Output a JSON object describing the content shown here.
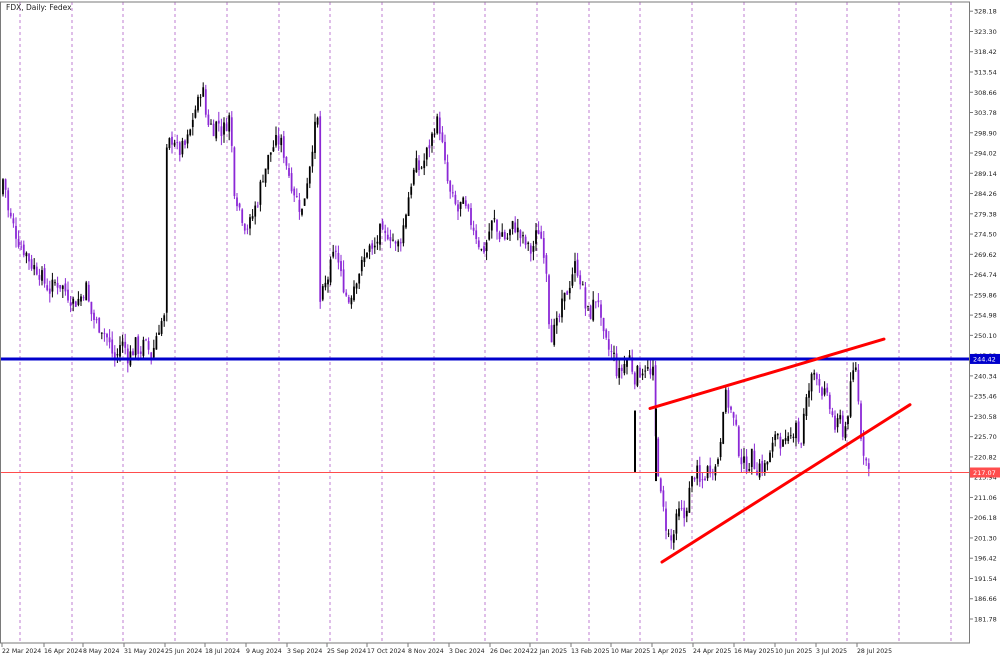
{
  "header": {
    "label": "FDX, Daily: Fedex"
  },
  "colors": {
    "background": "#ffffff",
    "frame": "#7a7a7a",
    "grid": "#b05ec8",
    "candle_bull": "#000000",
    "candle_bear": "#8b28d6",
    "support_line": "#0000cc",
    "current_line": "#ff4d4d",
    "trend_line": "#ff0000",
    "label_bg": "#1f1f1f",
    "label_text": "#ffffff"
  },
  "chart_data": {
    "type": "candlestick",
    "title": "FDX, Daily: Fedex",
    "ylim": [
      176.0,
      330.4
    ],
    "y_ticks": [
      "328.18",
      "323.30",
      "318.42",
      "313.54",
      "308.66",
      "303.78",
      "298.90",
      "294.02",
      "289.14",
      "284.26",
      "279.38",
      "274.50",
      "269.62",
      "264.74",
      "259.86",
      "254.98",
      "250.10",
      "245.22",
      "240.34",
      "235.46",
      "230.58",
      "225.70",
      "220.82",
      "215.94",
      "211.06",
      "206.18",
      "201.30",
      "196.42",
      "191.54",
      "186.66",
      "181.78"
    ],
    "x_labels": [
      "22 Mar 2024",
      "16 Apr 2024",
      "8 May 2024",
      "31 May 2024",
      "25 Jun 2024",
      "18 Jul 2024",
      "9 Aug 2024",
      "3 Sep 2024",
      "25 Sep 2024",
      "17 Oct 2024",
      "8 Nov 2024",
      "3 Dec 2024",
      "26 Dec 2024",
      "22 Jan 2025",
      "13 Feb 2025",
      "10 Mar 2025",
      "1 Apr 2025",
      "24 Apr 2025",
      "16 May 2025",
      "10 Jun 2025",
      "3 Jul 2025",
      "28 Jul 2025"
    ],
    "grid": "vertical dashed",
    "price_path": [
      [
        0,
        284
      ],
      [
        4,
        289
      ],
      [
        8,
        280
      ],
      [
        14,
        276
      ],
      [
        20,
        272
      ],
      [
        26,
        270
      ],
      [
        32,
        267
      ],
      [
        38,
        266
      ],
      [
        44,
        263
      ],
      [
        50,
        261
      ],
      [
        56,
        263
      ],
      [
        62,
        262
      ],
      [
        68,
        260
      ],
      [
        74,
        258
      ],
      [
        80,
        259
      ],
      [
        86,
        262
      ],
      [
        90,
        256
      ],
      [
        96,
        253
      ],
      [
        102,
        252
      ],
      [
        108,
        249
      ],
      [
        112,
        246
      ],
      [
        116,
        244
      ],
      [
        120,
        248
      ],
      [
        124,
        248
      ],
      [
        128,
        245
      ],
      [
        132,
        246
      ],
      [
        136,
        248
      ],
      [
        140,
        246
      ],
      [
        144,
        248
      ],
      [
        148,
        247
      ],
      [
        152,
        245
      ],
      [
        156,
        250
      ],
      [
        160,
        253
      ],
      [
        164,
        254
      ],
      [
        166,
        293
      ],
      [
        170,
        297
      ],
      [
        174,
        298
      ],
      [
        178,
        294
      ],
      [
        182,
        295
      ],
      [
        186,
        296
      ],
      [
        190,
        299
      ],
      [
        194,
        304
      ],
      [
        198,
        306
      ],
      [
        202,
        311
      ],
      [
        206,
        303
      ],
      [
        210,
        301
      ],
      [
        214,
        300
      ],
      [
        218,
        302
      ],
      [
        222,
        299
      ],
      [
        226,
        301
      ],
      [
        230,
        303
      ],
      [
        234,
        286
      ],
      [
        238,
        282
      ],
      [
        242,
        279
      ],
      [
        246,
        276
      ],
      [
        250,
        277
      ],
      [
        254,
        280
      ],
      [
        258,
        283
      ],
      [
        262,
        288
      ],
      [
        266,
        291
      ],
      [
        270,
        294
      ],
      [
        274,
        296
      ],
      [
        278,
        297
      ],
      [
        282,
        296
      ],
      [
        286,
        292
      ],
      [
        290,
        288
      ],
      [
        294,
        285
      ],
      [
        298,
        282
      ],
      [
        302,
        280
      ],
      [
        306,
        286
      ],
      [
        310,
        292
      ],
      [
        314,
        299
      ],
      [
        318,
        302
      ],
      [
        320,
        258
      ],
      [
        324,
        261
      ],
      [
        328,
        264
      ],
      [
        332,
        268
      ],
      [
        336,
        271
      ],
      [
        340,
        265
      ],
      [
        344,
        262
      ],
      [
        348,
        258
      ],
      [
        352,
        261
      ],
      [
        356,
        264
      ],
      [
        360,
        266
      ],
      [
        364,
        268
      ],
      [
        368,
        272
      ],
      [
        372,
        270
      ],
      [
        376,
        272
      ],
      [
        380,
        275
      ],
      [
        384,
        273
      ],
      [
        388,
        275
      ],
      [
        392,
        274
      ],
      [
        396,
        271
      ],
      [
        400,
        273
      ],
      [
        404,
        277
      ],
      [
        408,
        283
      ],
      [
        412,
        288
      ],
      [
        416,
        291
      ],
      [
        420,
        290
      ],
      [
        424,
        292
      ],
      [
        428,
        295
      ],
      [
        432,
        298
      ],
      [
        436,
        302
      ],
      [
        440,
        300
      ],
      [
        446,
        289
      ],
      [
        450,
        284
      ],
      [
        454,
        282
      ],
      [
        458,
        280
      ],
      [
        462,
        282
      ],
      [
        466,
        280
      ],
      [
        470,
        278
      ],
      [
        474,
        276
      ],
      [
        478,
        273
      ],
      [
        482,
        270
      ],
      [
        486,
        272
      ],
      [
        490,
        276
      ],
      [
        494,
        278
      ],
      [
        498,
        274
      ],
      [
        502,
        275
      ],
      [
        506,
        273
      ],
      [
        510,
        275
      ],
      [
        514,
        277
      ],
      [
        518,
        275
      ],
      [
        522,
        273
      ],
      [
        526,
        272
      ],
      [
        530,
        270
      ],
      [
        534,
        272
      ],
      [
        538,
        276
      ],
      [
        542,
        273
      ],
      [
        546,
        268
      ],
      [
        550,
        250
      ],
      [
        554,
        251
      ],
      [
        558,
        253
      ],
      [
        562,
        257
      ],
      [
        566,
        260
      ],
      [
        570,
        263
      ],
      [
        574,
        267
      ],
      [
        578,
        266
      ],
      [
        582,
        262
      ],
      [
        586,
        256
      ],
      [
        590,
        255
      ],
      [
        594,
        258
      ],
      [
        598,
        260
      ],
      [
        602,
        250
      ],
      [
        606,
        248
      ],
      [
        610,
        246
      ],
      [
        614,
        245
      ],
      [
        618,
        240
      ],
      [
        622,
        242
      ],
      [
        626,
        244
      ],
      [
        630,
        245
      ],
      [
        634,
        240
      ],
      [
        638,
        241
      ],
      [
        642,
        242
      ],
      [
        646,
        243
      ],
      [
        650,
        240
      ],
      [
        654,
        241
      ],
      [
        656,
        225
      ],
      [
        660,
        212
      ],
      [
        664,
        207
      ],
      [
        668,
        202
      ],
      [
        672,
        200
      ],
      [
        676,
        205
      ],
      [
        680,
        208
      ],
      [
        684,
        206
      ],
      [
        688,
        211
      ],
      [
        692,
        215
      ],
      [
        696,
        218
      ],
      [
        700,
        214
      ],
      [
        704,
        216
      ],
      [
        708,
        218
      ],
      [
        712,
        219
      ],
      [
        716,
        218
      ],
      [
        720,
        224
      ],
      [
        724,
        236
      ],
      [
        728,
        234
      ],
      [
        732,
        231
      ],
      [
        736,
        227
      ],
      [
        740,
        221
      ],
      [
        744,
        219
      ],
      [
        748,
        219
      ],
      [
        752,
        221
      ],
      [
        756,
        218
      ],
      [
        760,
        219
      ],
      [
        764,
        218
      ],
      [
        768,
        220
      ],
      [
        772,
        222
      ],
      [
        776,
        228
      ],
      [
        780,
        225
      ],
      [
        784,
        223
      ],
      [
        788,
        224
      ],
      [
        792,
        226
      ],
      [
        796,
        230
      ],
      [
        800,
        222
      ],
      [
        804,
        231
      ],
      [
        808,
        236
      ],
      [
        812,
        240
      ],
      [
        816,
        242
      ],
      [
        820,
        238
      ],
      [
        824,
        236
      ],
      [
        828,
        234
      ],
      [
        832,
        231
      ],
      [
        836,
        227
      ],
      [
        840,
        230
      ],
      [
        844,
        226
      ],
      [
        848,
        232
      ],
      [
        852,
        240
      ],
      [
        856,
        243
      ],
      [
        860,
        228
      ],
      [
        864,
        222
      ],
      [
        868,
        218
      ],
      [
        870,
        217
      ]
    ],
    "horizontal_lines": [
      {
        "name": "support",
        "value": 244.42,
        "label": "244.42"
      },
      {
        "name": "current-price",
        "value": 217.07,
        "label": "217.07"
      }
    ],
    "trend_lines": [
      {
        "name": "upper-trendline",
        "x1": 650,
        "y1": 232.5,
        "x2": 884,
        "y2": 249.2
      },
      {
        "name": "lower-trendline",
        "x1": 662,
        "y1": 195.5,
        "x2": 910,
        "y2": 233.4
      }
    ],
    "gap_spikes": [
      {
        "x": 635,
        "high": 232.0,
        "low": 217.2
      },
      {
        "x": 656,
        "high": 232.5,
        "low": 215.0
      }
    ]
  }
}
